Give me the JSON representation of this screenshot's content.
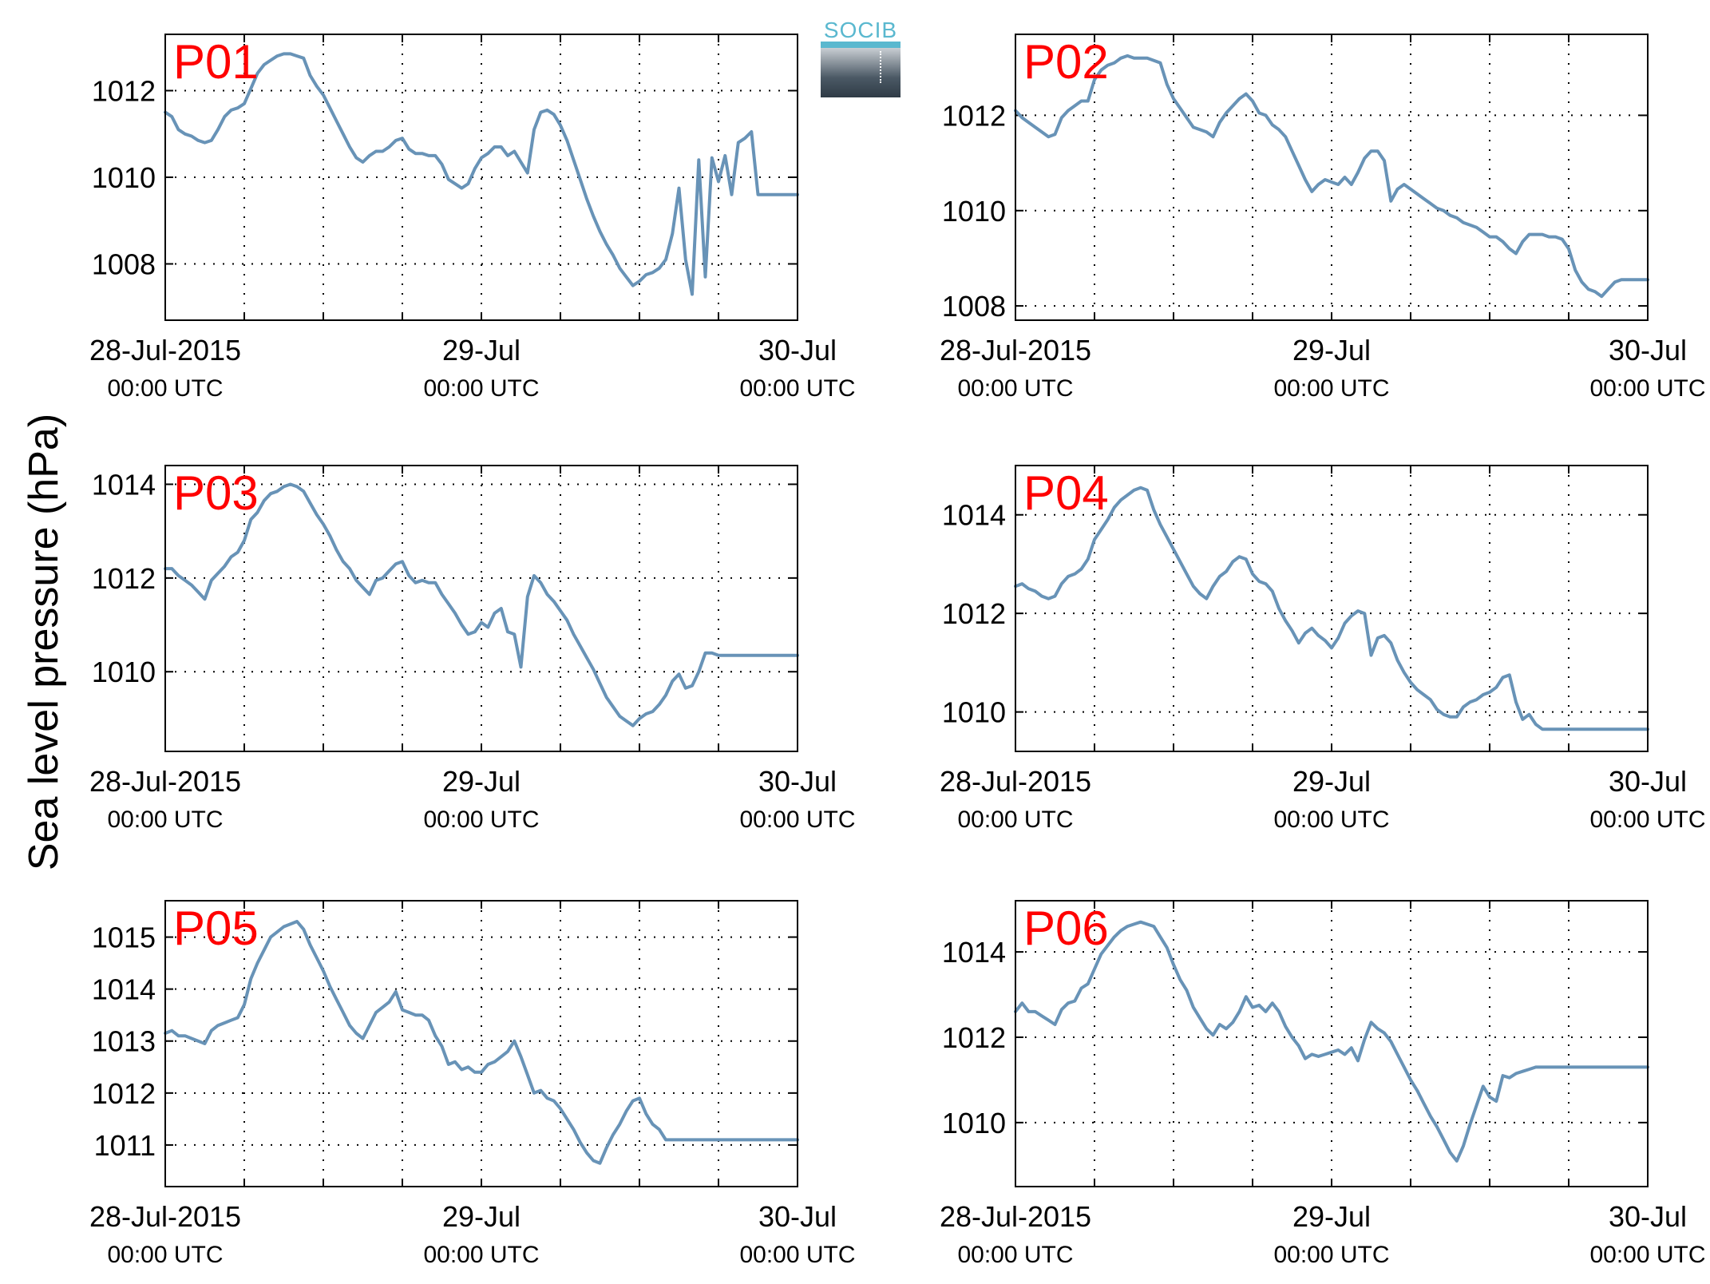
{
  "figure": {
    "ylabel": "Sea level pressure (hPa)",
    "logo_text": "SOCIB",
    "x_tick_labels": [
      {
        "date": "28-Jul-2015",
        "time": "00:00 UTC"
      },
      {
        "date": "29-Jul",
        "time": "00:00 UTC"
      },
      {
        "date": "30-Jul",
        "time": "00:00 UTC"
      }
    ],
    "colors": {
      "line": "#6893b7",
      "panel_label": "#ff0000",
      "axes": "#000000"
    }
  },
  "chart_data": [
    {
      "type": "line",
      "title": "P01",
      "x_unit": "hours since 28-Jul-2015 00:00 UTC",
      "xlim": [
        0,
        48
      ],
      "ylim": [
        1006.7,
        1013.3
      ],
      "yticks": [
        1008,
        1010,
        1012
      ],
      "x": [
        0,
        0.5,
        1,
        1.5,
        2,
        2.5,
        3,
        3.5,
        4,
        4.5,
        5,
        5.5,
        6,
        6.5,
        7,
        7.5,
        8,
        8.5,
        9,
        9.5,
        10,
        10.5,
        11,
        11.5,
        12,
        12.5,
        13,
        13.5,
        14,
        14.5,
        15,
        15.5,
        16,
        16.5,
        17,
        17.5,
        18,
        18.5,
        19,
        19.5,
        20,
        20.5,
        21,
        21.5,
        22,
        22.5,
        23,
        23.5,
        24,
        24.5,
        25,
        25.5,
        26,
        26.5,
        27,
        27.5,
        28,
        28.5,
        29,
        29.5,
        30,
        30.5,
        31,
        31.5,
        32,
        32.5,
        33,
        33.5,
        34,
        34.5,
        35,
        35.5,
        36,
        36.5,
        37,
        37.5,
        38,
        38.5,
        39,
        39.5,
        40,
        40.5,
        41,
        41.5,
        42,
        42.5,
        43,
        43.5,
        44,
        44.5,
        45,
        45.3,
        45.6,
        45.9,
        46.2,
        46.5,
        46.8,
        47.1,
        47.4,
        47.7,
        48
      ],
      "y": [
        1011.5,
        1011.4,
        1011.1,
        1011,
        1010.95,
        1010.85,
        1010.8,
        1010.85,
        1011.1,
        1011.4,
        1011.55,
        1011.6,
        1011.7,
        1012.05,
        1012.4,
        1012.6,
        1012.7,
        1012.8,
        1012.85,
        1012.85,
        1012.8,
        1012.75,
        1012.35,
        1012.1,
        1011.9,
        1011.6,
        1011.3,
        1011,
        1010.7,
        1010.45,
        1010.35,
        1010.5,
        1010.6,
        1010.6,
        1010.7,
        1010.85,
        1010.9,
        1010.65,
        1010.55,
        1010.55,
        1010.5,
        1010.5,
        1010.3,
        1009.95,
        1009.85,
        1009.75,
        1009.85,
        1010.2,
        1010.45,
        1010.55,
        1010.7,
        1010.7,
        1010.5,
        1010.6,
        1010.35,
        1010.1,
        1011.1,
        1011.5,
        1011.55,
        1011.45,
        1011.2,
        1010.85,
        1010.4,
        1009.95,
        1009.5,
        1009.1,
        1008.75,
        1008.45,
        1008.2,
        1007.9,
        1007.7,
        1007.5,
        1007.6,
        1007.75,
        1007.8,
        1007.9,
        1008.1,
        1008.7,
        1009.75,
        1008.1,
        1007.3,
        1010.4,
        1007.7,
        1010.45,
        1009.9,
        1010.5,
        1009.6,
        1010.8,
        1010.9,
        1011.05,
        1009.6,
        1009.6,
        1009.6,
        1009.6,
        1009.6,
        1009.6,
        1009.6,
        1009.6,
        1009.6,
        1009.6,
        1009.6
      ]
    },
    {
      "type": "line",
      "title": "P02",
      "x_unit": "hours since 28-Jul-2015 00:00 UTC",
      "xlim": [
        0,
        48
      ],
      "ylim": [
        1007.7,
        1013.7
      ],
      "yticks": [
        1008,
        1010,
        1012
      ],
      "x": [
        0,
        0.5,
        1,
        1.5,
        2,
        2.5,
        3,
        3.5,
        4,
        4.5,
        5,
        5.5,
        6,
        6.5,
        7,
        7.5,
        8,
        8.5,
        9,
        9.5,
        10,
        10.5,
        11,
        11.5,
        12,
        12.5,
        13,
        13.5,
        14,
        14.5,
        15,
        15.5,
        16,
        16.5,
        17,
        17.5,
        18,
        18.5,
        19,
        19.5,
        20,
        20.5,
        21,
        21.5,
        22,
        22.5,
        23,
        23.5,
        24,
        24.5,
        25,
        25.5,
        26,
        26.5,
        27,
        27.5,
        28,
        28.5,
        29,
        29.5,
        30,
        30.5,
        31,
        31.5,
        32,
        32.5,
        33,
        33.5,
        34,
        34.5,
        35,
        35.5,
        36,
        36.5,
        37,
        37.5,
        38,
        38.5,
        39,
        39.5,
        40,
        40.5,
        41,
        41.5,
        42,
        42.5,
        43,
        43.5,
        44,
        44.5,
        45,
        45.5,
        46,
        46.5,
        47,
        47.5,
        48
      ],
      "y": [
        1012.1,
        1011.95,
        1011.85,
        1011.75,
        1011.65,
        1011.55,
        1011.6,
        1011.95,
        1012.1,
        1012.2,
        1012.3,
        1012.3,
        1012.75,
        1012.95,
        1013.05,
        1013.1,
        1013.2,
        1013.25,
        1013.2,
        1013.2,
        1013.2,
        1013.15,
        1013.1,
        1012.65,
        1012.35,
        1012.15,
        1011.95,
        1011.75,
        1011.7,
        1011.65,
        1011.55,
        1011.85,
        1012.05,
        1012.2,
        1012.35,
        1012.45,
        1012.3,
        1012.05,
        1012,
        1011.8,
        1011.7,
        1011.55,
        1011.25,
        1010.95,
        1010.65,
        1010.4,
        1010.55,
        1010.65,
        1010.6,
        1010.55,
        1010.7,
        1010.55,
        1010.8,
        1011.1,
        1011.25,
        1011.25,
        1011.05,
        1010.2,
        1010.45,
        1010.55,
        1010.45,
        1010.35,
        1010.25,
        1010.15,
        1010.05,
        1010,
        1009.9,
        1009.85,
        1009.75,
        1009.7,
        1009.65,
        1009.55,
        1009.45,
        1009.45,
        1009.35,
        1009.2,
        1009.1,
        1009.35,
        1009.5,
        1009.5,
        1009.5,
        1009.45,
        1009.45,
        1009.4,
        1009.2,
        1008.75,
        1008.5,
        1008.35,
        1008.3,
        1008.2,
        1008.35,
        1008.5,
        1008.55,
        1008.55,
        1008.55,
        1008.55,
        1008.55
      ]
    },
    {
      "type": "line",
      "title": "P03",
      "x_unit": "hours since 28-Jul-2015 00:00 UTC",
      "xlim": [
        0,
        48
      ],
      "ylim": [
        1008.3,
        1014.4
      ],
      "yticks": [
        1010,
        1012,
        1014
      ],
      "x": [
        0,
        0.5,
        1,
        1.5,
        2,
        2.5,
        3,
        3.5,
        4,
        4.5,
        5,
        5.5,
        6,
        6.5,
        7,
        7.5,
        8,
        8.5,
        9,
        9.5,
        10,
        10.5,
        11,
        11.5,
        12,
        12.5,
        13,
        13.5,
        14,
        14.5,
        15,
        15.5,
        16,
        16.5,
        17,
        17.5,
        18,
        18.5,
        19,
        19.5,
        20,
        20.5,
        21,
        21.5,
        22,
        22.5,
        23,
        23.5,
        24,
        24.5,
        25,
        25.5,
        26,
        26.5,
        27,
        27.5,
        28,
        28.5,
        29,
        29.5,
        30,
        30.5,
        31,
        31.5,
        32,
        32.5,
        33,
        33.5,
        34,
        34.5,
        35,
        35.5,
        36,
        36.5,
        37,
        37.5,
        38,
        38.5,
        39,
        39.5,
        40,
        40.5,
        41,
        41.5,
        42,
        42.5,
        43,
        43.5,
        44,
        44.5,
        45,
        45.5,
        46,
        46.5,
        47,
        47.5,
        48
      ],
      "y": [
        1012.2,
        1012.2,
        1012.05,
        1011.95,
        1011.85,
        1011.7,
        1011.55,
        1011.95,
        1012.1,
        1012.25,
        1012.45,
        1012.55,
        1012.8,
        1013.25,
        1013.4,
        1013.65,
        1013.8,
        1013.85,
        1013.95,
        1014,
        1013.95,
        1013.85,
        1013.6,
        1013.35,
        1013.15,
        1012.9,
        1012.6,
        1012.35,
        1012.2,
        1011.95,
        1011.8,
        1011.65,
        1011.95,
        1012,
        1012.15,
        1012.3,
        1012.35,
        1012.05,
        1011.9,
        1011.95,
        1011.9,
        1011.9,
        1011.65,
        1011.45,
        1011.25,
        1011,
        1010.8,
        1010.85,
        1011.05,
        1010.95,
        1011.25,
        1011.35,
        1010.85,
        1010.8,
        1010.1,
        1011.6,
        1012.05,
        1011.9,
        1011.65,
        1011.5,
        1011.3,
        1011.1,
        1010.8,
        1010.55,
        1010.3,
        1010.05,
        1009.75,
        1009.45,
        1009.25,
        1009.05,
        1008.95,
        1008.85,
        1009,
        1009.1,
        1009.15,
        1009.3,
        1009.5,
        1009.8,
        1009.95,
        1009.65,
        1009.7,
        1010,
        1010.4,
        1010.4,
        1010.35,
        1010.35,
        1010.35,
        1010.35,
        1010.35,
        1010.35,
        1010.35,
        1010.35,
        1010.35,
        1010.35,
        1010.35,
        1010.35,
        1010.35
      ]
    },
    {
      "type": "line",
      "title": "P04",
      "x_unit": "hours since 28-Jul-2015 00:00 UTC",
      "xlim": [
        0,
        48
      ],
      "ylim": [
        1009.2,
        1015.0
      ],
      "yticks": [
        1010,
        1012,
        1014
      ],
      "x": [
        0,
        0.5,
        1,
        1.5,
        2,
        2.5,
        3,
        3.5,
        4,
        4.5,
        5,
        5.5,
        6,
        6.5,
        7,
        7.5,
        8,
        8.5,
        9,
        9.5,
        10,
        10.5,
        11,
        11.5,
        12,
        12.5,
        13,
        13.5,
        14,
        14.5,
        15,
        15.5,
        16,
        16.5,
        17,
        17.5,
        18,
        18.5,
        19,
        19.5,
        20,
        20.5,
        21,
        21.5,
        22,
        22.5,
        23,
        23.5,
        24,
        24.5,
        25,
        25.5,
        26,
        26.5,
        27,
        27.5,
        28,
        28.5,
        29,
        29.5,
        30,
        30.5,
        31,
        31.5,
        32,
        32.5,
        33,
        33.5,
        34,
        34.5,
        35,
        35.5,
        36,
        36.5,
        37,
        37.5,
        38,
        38.5,
        39,
        39.5,
        40,
        40.5,
        41,
        41.5,
        42,
        42.5,
        43,
        43.5,
        44,
        44.5,
        45,
        45.5,
        46,
        46.5,
        47,
        47.5,
        48
      ],
      "y": [
        1012.55,
        1012.6,
        1012.5,
        1012.45,
        1012.35,
        1012.3,
        1012.35,
        1012.6,
        1012.75,
        1012.8,
        1012.9,
        1013.1,
        1013.5,
        1013.7,
        1013.9,
        1014.15,
        1014.3,
        1014.4,
        1014.5,
        1014.55,
        1014.5,
        1014.1,
        1013.8,
        1013.55,
        1013.3,
        1013.05,
        1012.8,
        1012.55,
        1012.4,
        1012.3,
        1012.55,
        1012.75,
        1012.85,
        1013.05,
        1013.15,
        1013.1,
        1012.8,
        1012.65,
        1012.6,
        1012.45,
        1012.1,
        1011.85,
        1011.65,
        1011.4,
        1011.6,
        1011.7,
        1011.55,
        1011.45,
        1011.3,
        1011.5,
        1011.8,
        1011.95,
        1012.05,
        1012,
        1011.15,
        1011.5,
        1011.55,
        1011.4,
        1011.05,
        1010.8,
        1010.6,
        1010.45,
        1010.35,
        1010.25,
        1010.05,
        1009.95,
        1009.9,
        1009.9,
        1010.1,
        1010.2,
        1010.25,
        1010.35,
        1010.4,
        1010.5,
        1010.7,
        1010.75,
        1010.2,
        1009.85,
        1009.95,
        1009.75,
        1009.65,
        1009.65,
        1009.65,
        1009.65,
        1009.65,
        1009.65,
        1009.65,
        1009.65,
        1009.65,
        1009.65,
        1009.65,
        1009.65,
        1009.65,
        1009.65,
        1009.65,
        1009.65,
        1009.65
      ]
    },
    {
      "type": "line",
      "title": "P05",
      "x_unit": "hours since 28-Jul-2015 00:00 UTC",
      "xlim": [
        0,
        48
      ],
      "ylim": [
        1010.2,
        1015.7
      ],
      "yticks": [
        1011,
        1012,
        1013,
        1014,
        1015
      ],
      "x": [
        0,
        0.5,
        1,
        1.5,
        2,
        2.5,
        3,
        3.5,
        4,
        4.5,
        5,
        5.5,
        6,
        6.5,
        7,
        7.5,
        8,
        8.5,
        9,
        9.5,
        10,
        10.5,
        11,
        11.5,
        12,
        12.5,
        13,
        13.5,
        14,
        14.5,
        15,
        15.5,
        16,
        16.5,
        17,
        17.5,
        18,
        18.5,
        19,
        19.5,
        20,
        20.5,
        21,
        21.5,
        22,
        22.5,
        23,
        23.5,
        24,
        24.5,
        25,
        25.5,
        26,
        26.5,
        27,
        27.5,
        28,
        28.5,
        29,
        29.5,
        30,
        30.5,
        31,
        31.5,
        32,
        32.5,
        33,
        33.5,
        34,
        34.5,
        35,
        35.5,
        36,
        36.5,
        37,
        37.5,
        38,
        38.5,
        39,
        39.5,
        40,
        40.5,
        41,
        41.5,
        42,
        42.5,
        43,
        43.5,
        44,
        44.5,
        45,
        45.5,
        46,
        46.5,
        47,
        47.5,
        48
      ],
      "y": [
        1013.15,
        1013.2,
        1013.1,
        1013.1,
        1013.05,
        1013,
        1012.95,
        1013.2,
        1013.3,
        1013.35,
        1013.4,
        1013.45,
        1013.7,
        1014.2,
        1014.5,
        1014.75,
        1015,
        1015.1,
        1015.2,
        1015.25,
        1015.3,
        1015.15,
        1014.85,
        1014.6,
        1014.35,
        1014.05,
        1013.8,
        1013.55,
        1013.3,
        1013.15,
        1013.05,
        1013.3,
        1013.55,
        1013.65,
        1013.75,
        1013.95,
        1013.6,
        1013.55,
        1013.5,
        1013.5,
        1013.4,
        1013.1,
        1012.9,
        1012.55,
        1012.6,
        1012.45,
        1012.5,
        1012.4,
        1012.4,
        1012.55,
        1012.6,
        1012.7,
        1012.8,
        1013,
        1012.7,
        1012.35,
        1012,
        1012.05,
        1011.9,
        1011.85,
        1011.7,
        1011.5,
        1011.3,
        1011.05,
        1010.85,
        1010.7,
        1010.65,
        1010.95,
        1011.2,
        1011.4,
        1011.65,
        1011.85,
        1011.9,
        1011.6,
        1011.4,
        1011.3,
        1011.1,
        1011.1,
        1011.1,
        1011.1,
        1011.1,
        1011.1,
        1011.1,
        1011.1,
        1011.1,
        1011.1,
        1011.1,
        1011.1,
        1011.1,
        1011.1,
        1011.1,
        1011.1,
        1011.1,
        1011.1,
        1011.1,
        1011.1,
        1011.1
      ]
    },
    {
      "type": "line",
      "title": "P06",
      "x_unit": "hours since 28-Jul-2015 00:00 UTC",
      "xlim": [
        0,
        48
      ],
      "ylim": [
        1008.5,
        1015.2
      ],
      "yticks": [
        1010,
        1012,
        1014
      ],
      "x": [
        0,
        0.5,
        1,
        1.5,
        2,
        2.5,
        3,
        3.5,
        4,
        4.5,
        5,
        5.5,
        6,
        6.5,
        7,
        7.5,
        8,
        8.5,
        9,
        9.5,
        10,
        10.5,
        11,
        11.5,
        12,
        12.5,
        13,
        13.5,
        14,
        14.5,
        15,
        15.5,
        16,
        16.5,
        17,
        17.5,
        18,
        18.5,
        19,
        19.5,
        20,
        20.5,
        21,
        21.5,
        22,
        22.5,
        23,
        23.5,
        24,
        24.5,
        25,
        25.5,
        26,
        26.5,
        27,
        27.5,
        28,
        28.5,
        29,
        29.5,
        30,
        30.5,
        31,
        31.5,
        32,
        32.5,
        33,
        33.5,
        34,
        34.5,
        35,
        35.5,
        36,
        36.5,
        37,
        37.5,
        38,
        38.5,
        39,
        39.5,
        40,
        40.5,
        41,
        41.5,
        42,
        42.5,
        43,
        43.5,
        44,
        44.5,
        45,
        45.5,
        46,
        46.5,
        47,
        47.5,
        48
      ],
      "y": [
        1012.6,
        1012.8,
        1012.6,
        1012.6,
        1012.5,
        1012.4,
        1012.3,
        1012.65,
        1012.8,
        1012.85,
        1013.15,
        1013.25,
        1013.6,
        1013.95,
        1014.15,
        1014.35,
        1014.5,
        1014.6,
        1014.65,
        1014.7,
        1014.65,
        1014.6,
        1014.35,
        1014.1,
        1013.7,
        1013.35,
        1013.1,
        1012.7,
        1012.45,
        1012.2,
        1012.05,
        1012.3,
        1012.2,
        1012.35,
        1012.6,
        1012.95,
        1012.7,
        1012.75,
        1012.6,
        1012.8,
        1012.6,
        1012.25,
        1012,
        1011.8,
        1011.5,
        1011.6,
        1011.55,
        1011.6,
        1011.65,
        1011.7,
        1011.6,
        1011.75,
        1011.45,
        1011.95,
        1012.35,
        1012.2,
        1012.1,
        1011.9,
        1011.6,
        1011.3,
        1011,
        1010.75,
        1010.45,
        1010.15,
        1009.9,
        1009.6,
        1009.3,
        1009.1,
        1009.45,
        1009.95,
        1010.4,
        1010.85,
        1010.6,
        1010.5,
        1011.1,
        1011.05,
        1011.15,
        1011.2,
        1011.25,
        1011.3,
        1011.3,
        1011.3,
        1011.3,
        1011.3,
        1011.3,
        1011.3,
        1011.3,
        1011.3,
        1011.3,
        1011.3,
        1011.3,
        1011.3,
        1011.3,
        1011.3,
        1011.3,
        1011.3,
        1011.3
      ]
    }
  ]
}
